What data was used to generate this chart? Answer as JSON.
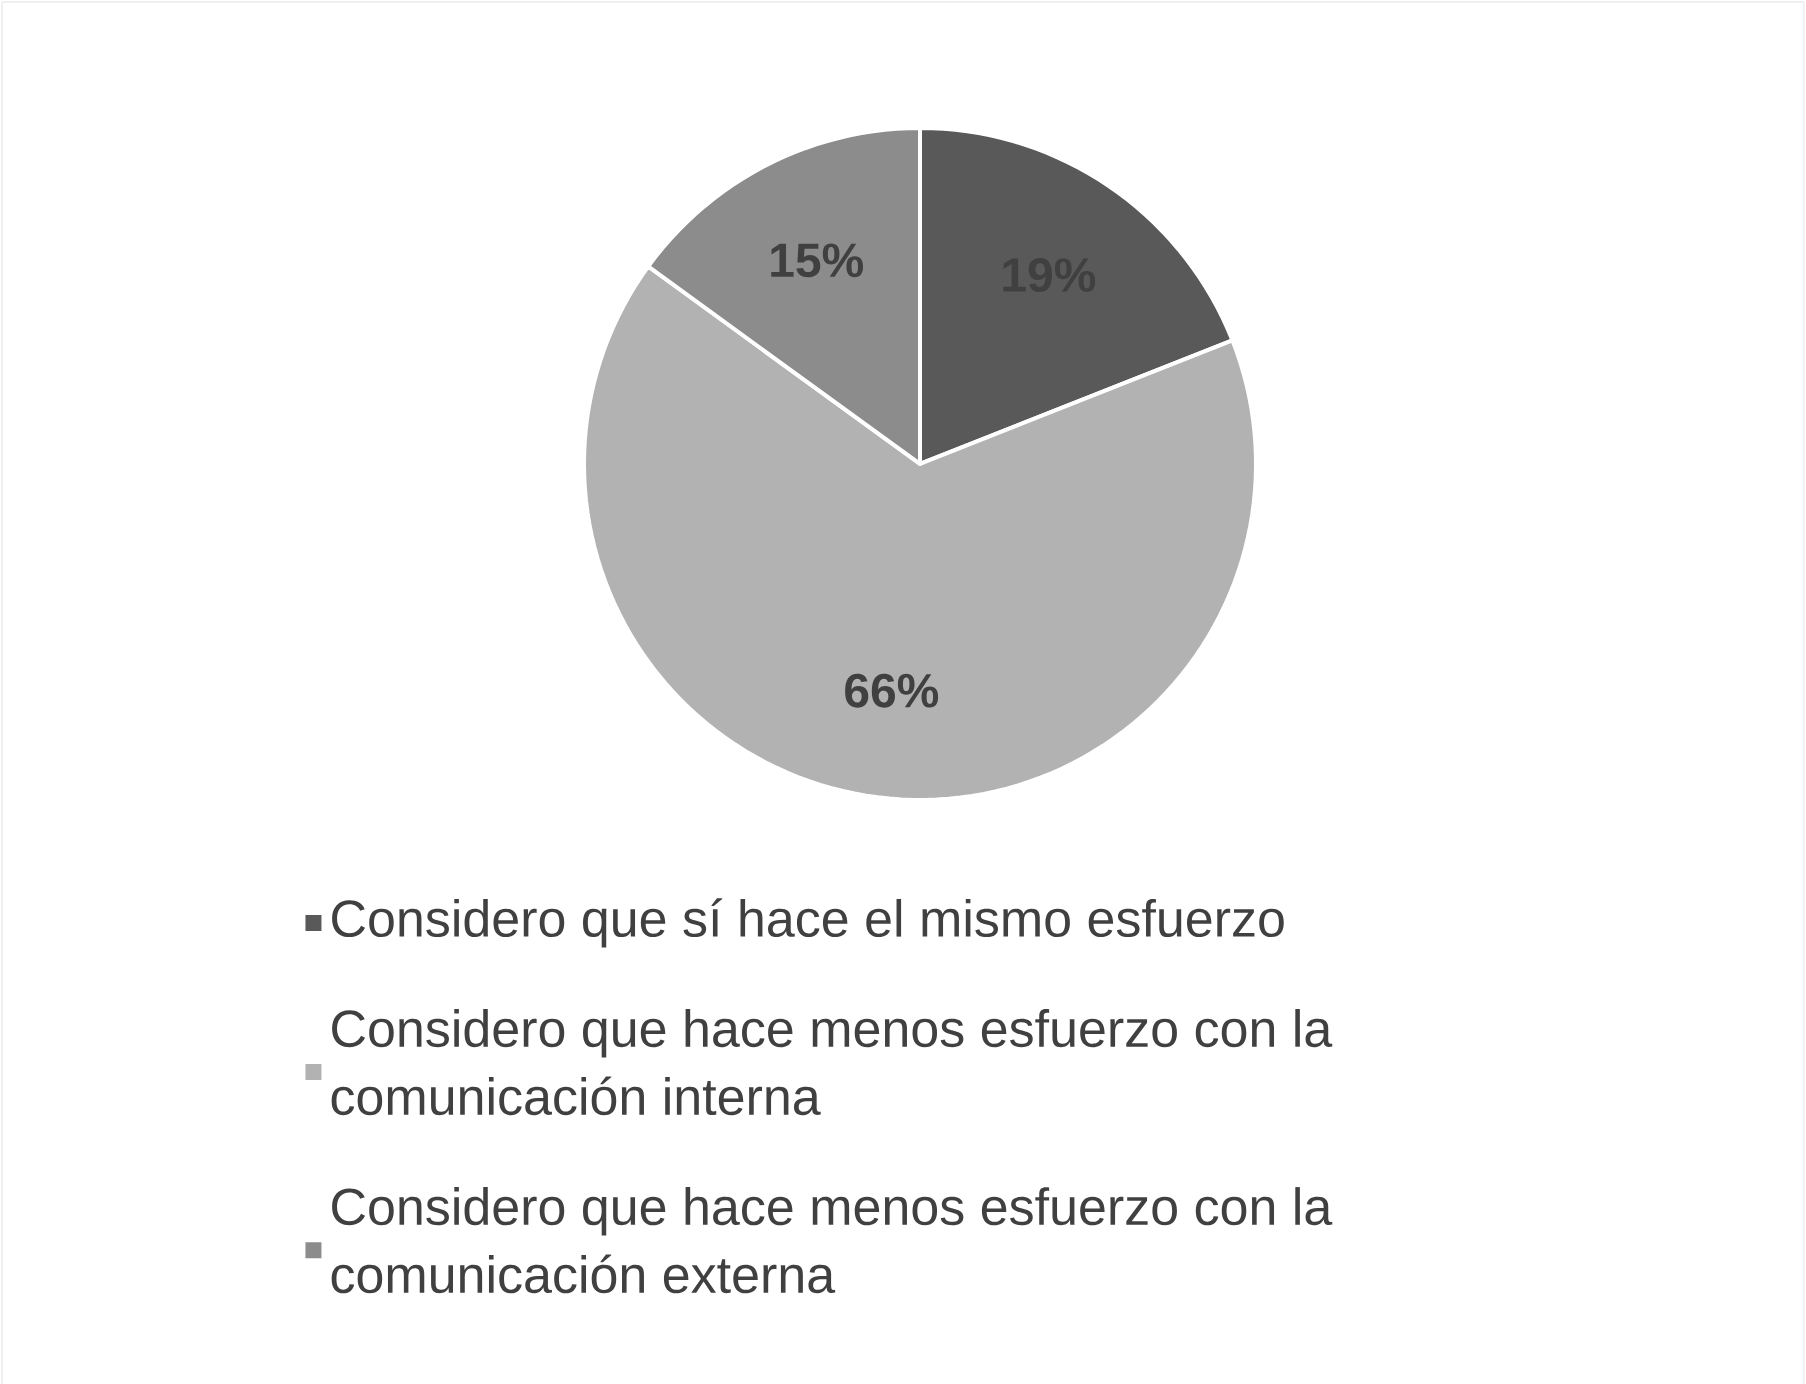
{
  "chart_data": {
    "type": "pie",
    "categories": [
      "Considero que sí hace el mismo esfuerzo",
      "Considero que hace menos esfuerzo con la comunicación interna",
      "Considero que hace menos esfuerzo con la comunicación externa"
    ],
    "values": [
      19,
      66,
      15
    ],
    "value_labels": [
      "19%",
      "66%",
      "15%"
    ],
    "colors": [
      "#595959",
      "#b2b2b2",
      "#8c8c8c"
    ],
    "legend": "bottom"
  }
}
